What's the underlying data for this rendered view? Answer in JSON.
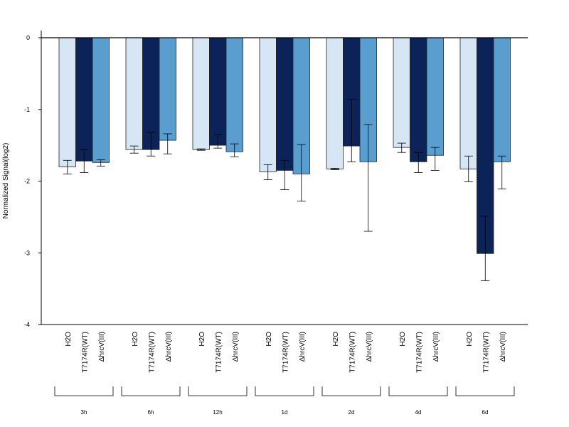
{
  "chart_data": {
    "type": "bar",
    "title": "",
    "xlabel": "",
    "ylabel": "Normalized Signal(log2)",
    "ylim": [
      -4,
      0
    ],
    "yticks": [
      0,
      -1,
      -2,
      -3,
      -4
    ],
    "grid": false,
    "legend": "none",
    "bar_labels": [
      "H2O",
      "T7174R(WT)",
      "ΔhrcV(III)"
    ],
    "groups": [
      "3h",
      "6h",
      "12h",
      "1d",
      "2d",
      "4d",
      "6d"
    ],
    "series": [
      {
        "name": "H2O",
        "color": "#d6e6f5",
        "values": [
          -1.8,
          -1.56,
          -1.56,
          -1.87,
          -1.83,
          -1.53,
          -1.83
        ]
      },
      {
        "name": "T7174R(WT)",
        "color": "#0b2358",
        "values": [
          -1.72,
          -1.56,
          -1.5,
          -1.85,
          -1.51,
          -1.73,
          -3.01
        ]
      },
      {
        "name": "ΔhrcV(III)",
        "color": "#5a9ecf",
        "values": [
          -1.74,
          -1.43,
          -1.59,
          -1.9,
          -1.73,
          -1.64,
          -1.73
        ]
      }
    ],
    "error_low": [
      [
        -1.9,
        -1.61,
        -1.57,
        -1.98,
        -1.84,
        -1.6,
        -2.01
      ],
      [
        -1.88,
        -1.65,
        -1.54,
        -2.12,
        -1.73,
        -1.88,
        -3.39
      ],
      [
        -1.79,
        -1.62,
        -1.66,
        -2.28,
        -2.7,
        -1.85,
        -2.11
      ]
    ],
    "error_high": [
      [
        -1.71,
        -1.51,
        -1.55,
        -1.77,
        -1.82,
        -1.47,
        -1.65
      ],
      [
        -1.56,
        -1.32,
        -1.35,
        -1.71,
        -0.86,
        -1.6,
        -2.49
      ],
      [
        -1.7,
        -1.34,
        -1.48,
        -1.49,
        -1.21,
        -1.53,
        -1.65
      ]
    ]
  }
}
